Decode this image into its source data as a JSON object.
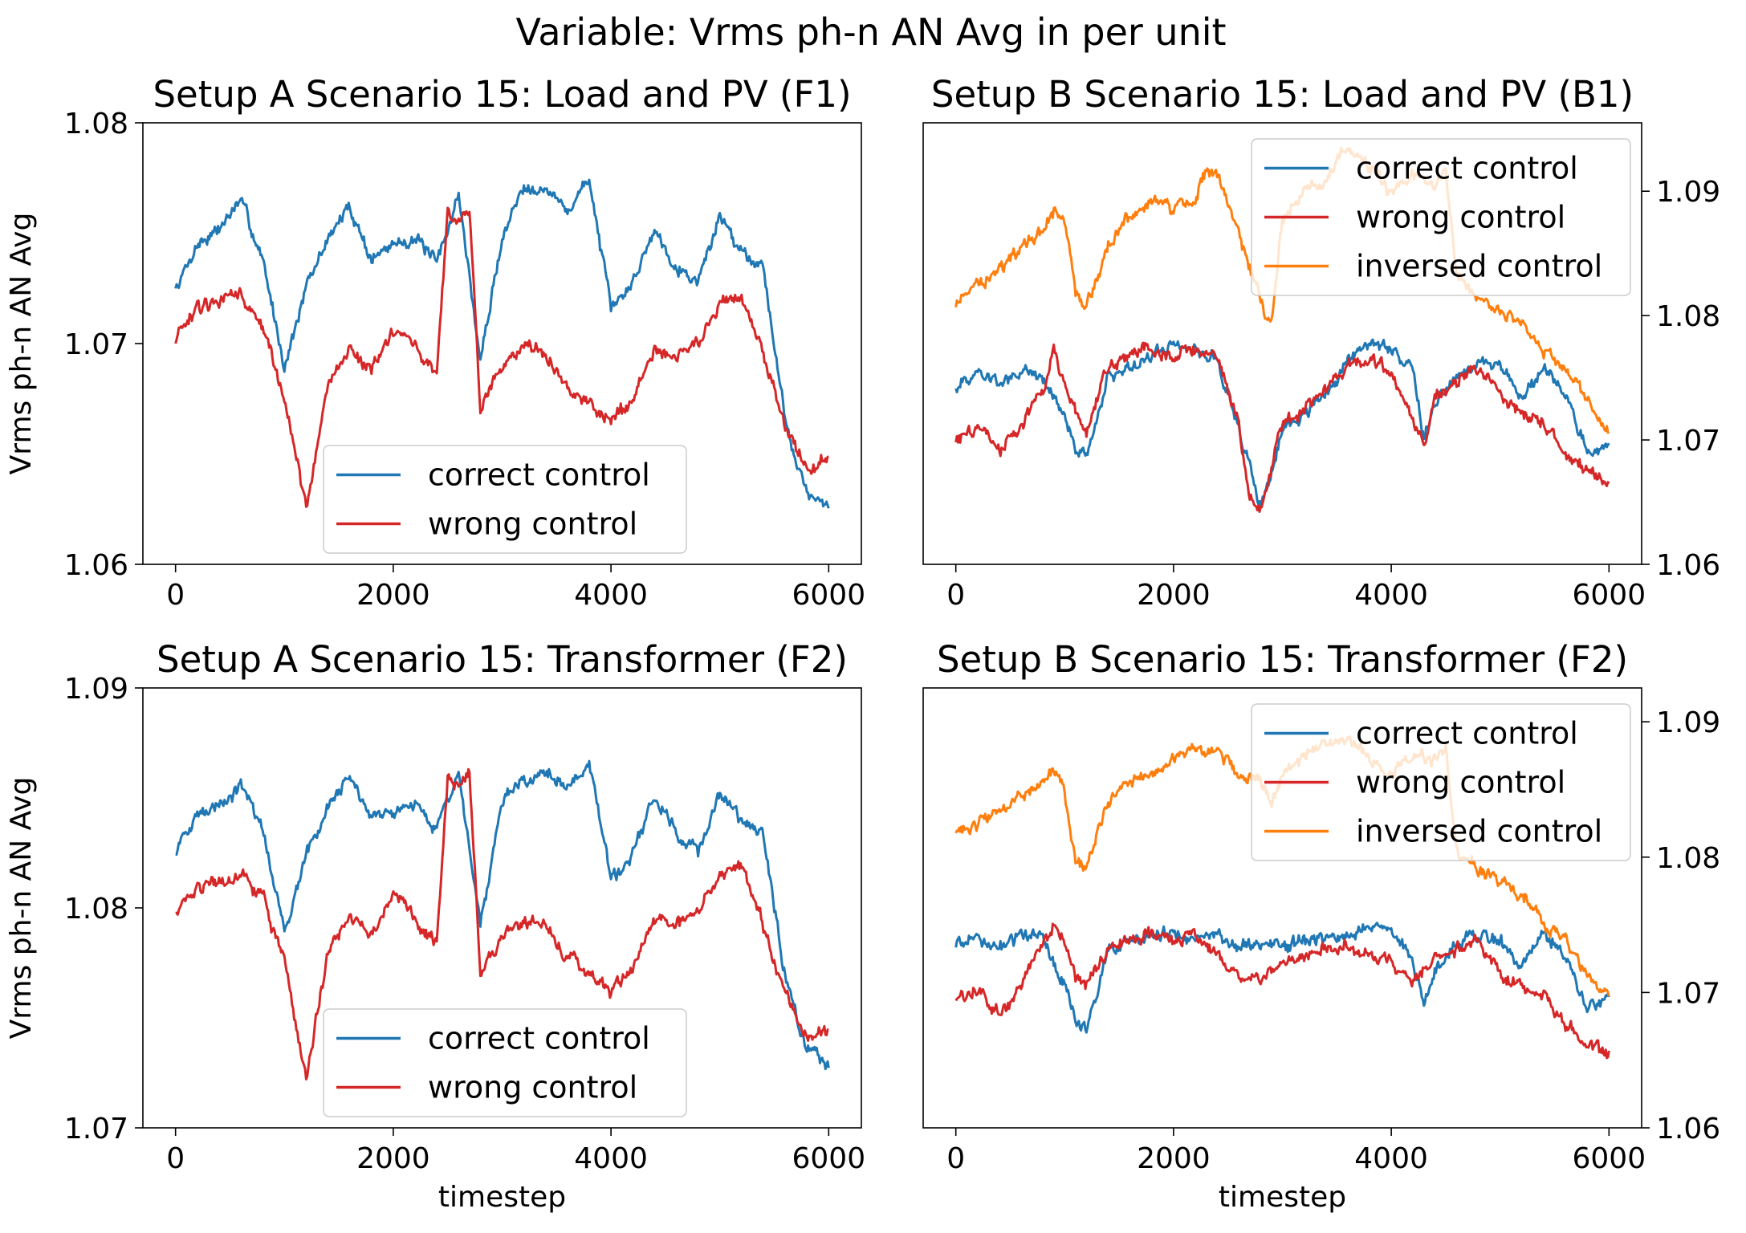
{
  "figure": {
    "suptitle": "Variable: Vrms ph-n AN Avg in per unit"
  },
  "chart_data": [
    {
      "type": "line",
      "title": "Setup A Scenario 15: Load and PV (F1)",
      "xlabel": "",
      "ylabel": "Vrms ph-n AN Avg",
      "y_axis_side": "left",
      "xlim": [
        -300,
        6300
      ],
      "ylim": [
        1.06,
        1.08
      ],
      "xticks": [
        0,
        2000,
        4000,
        6000
      ],
      "xtick_labels": [
        "0",
        "2000",
        "4000",
        "6000"
      ],
      "yticks": [
        1.06,
        1.07,
        1.08
      ],
      "ytick_labels": [
        "1.06",
        "1.07",
        "1.08"
      ],
      "grid": false,
      "legend_position": "lower center",
      "series": [
        {
          "name": "correct control",
          "color": "#1f77b4",
          "x": [
            0,
            200,
            400,
            600,
            800,
            1000,
            1200,
            1400,
            1600,
            1800,
            2000,
            2200,
            2400,
            2600,
            2800,
            3000,
            3200,
            3400,
            3600,
            3800,
            4000,
            4200,
            4400,
            4600,
            4800,
            5000,
            5200,
            5400,
            5600,
            5800,
            6000
          ],
          "y": [
            1.0725,
            1.0745,
            1.0752,
            1.0765,
            1.0738,
            1.069,
            1.0725,
            1.0748,
            1.0762,
            1.0738,
            1.0745,
            1.0748,
            1.0736,
            1.0768,
            1.0692,
            1.0748,
            1.0772,
            1.077,
            1.076,
            1.0775,
            1.0715,
            1.0728,
            1.0752,
            1.0735,
            1.0728,
            1.0758,
            1.0742,
            1.0735,
            1.0665,
            1.0632,
            1.0625
          ]
        },
        {
          "name": "wrong control",
          "color": "#d62728",
          "x": [
            0,
            200,
            400,
            600,
            800,
            1000,
            1200,
            1400,
            1600,
            1800,
            2000,
            2200,
            2400,
            2500,
            2600,
            2700,
            2800,
            3000,
            3200,
            3400,
            3600,
            3800,
            4000,
            4200,
            4400,
            4600,
            4800,
            5000,
            5200,
            5400,
            5600,
            5800,
            6000
          ],
          "y": [
            1.0702,
            1.0715,
            1.072,
            1.0722,
            1.0708,
            1.0675,
            1.0625,
            1.0682,
            1.0698,
            1.0688,
            1.0705,
            1.0698,
            1.0685,
            1.076,
            1.0755,
            1.0762,
            1.067,
            1.069,
            1.07,
            1.0695,
            1.068,
            1.0672,
            1.0665,
            1.0675,
            1.0698,
            1.0695,
            1.07,
            1.0718,
            1.0722,
            1.0695,
            1.0662,
            1.0642,
            1.0648
          ]
        }
      ]
    },
    {
      "type": "line",
      "title": "Setup B Scenario 15: Load and PV (B1)",
      "xlabel": "",
      "ylabel": "",
      "y_axis_side": "right",
      "xlim": [
        -300,
        6300
      ],
      "ylim": [
        1.06,
        1.0955
      ],
      "xticks": [
        0,
        2000,
        4000,
        6000
      ],
      "xtick_labels": [
        "0",
        "2000",
        "4000",
        "6000"
      ],
      "yticks": [
        1.06,
        1.07,
        1.08,
        1.09
      ],
      "ytick_labels": [
        "1.06",
        "1.07",
        "1.08",
        "1.09"
      ],
      "grid": false,
      "legend_position": "upper right",
      "series": [
        {
          "name": "correct control",
          "color": "#1f77b4",
          "x": [
            0,
            200,
            400,
            600,
            800,
            1000,
            1100,
            1200,
            1400,
            1600,
            1800,
            2000,
            2200,
            2400,
            2600,
            2800,
            3000,
            3200,
            3400,
            3600,
            3800,
            4000,
            4200,
            4300,
            4400,
            4600,
            4800,
            5000,
            5200,
            5400,
            5600,
            5800,
            6000
          ],
          "y": [
            1.0742,
            1.0755,
            1.0745,
            1.0755,
            1.075,
            1.072,
            1.0695,
            1.0685,
            1.0752,
            1.0758,
            1.0768,
            1.0778,
            1.0772,
            1.0765,
            1.071,
            1.0645,
            1.0705,
            1.0722,
            1.0735,
            1.0765,
            1.0778,
            1.0775,
            1.0755,
            1.0702,
            1.0728,
            1.0755,
            1.0762,
            1.0758,
            1.0732,
            1.0758,
            1.0735,
            1.0688,
            1.0695
          ]
        },
        {
          "name": "wrong control",
          "color": "#d62728",
          "x": [
            0,
            200,
            400,
            600,
            800,
            900,
            1000,
            1100,
            1200,
            1400,
            1600,
            1800,
            2000,
            2200,
            2400,
            2600,
            2700,
            2800,
            3000,
            3200,
            3400,
            3600,
            3800,
            4000,
            4200,
            4300,
            4400,
            4600,
            4800,
            5000,
            5200,
            5400,
            5600,
            5800,
            6000
          ],
          "y": [
            1.0698,
            1.0712,
            1.0692,
            1.0712,
            1.0738,
            1.0772,
            1.0748,
            1.0722,
            1.0705,
            1.0758,
            1.0768,
            1.0775,
            1.0768,
            1.0772,
            1.0765,
            1.0712,
            1.0655,
            1.0645,
            1.0712,
            1.0725,
            1.0742,
            1.0762,
            1.0768,
            1.0752,
            1.0718,
            1.0695,
            1.0735,
            1.0748,
            1.0758,
            1.0738,
            1.0722,
            1.0712,
            1.0688,
            1.0675,
            1.0665
          ]
        },
        {
          "name": "inversed control",
          "color": "#ff7f0e",
          "x": [
            0,
            200,
            400,
            600,
            800,
            900,
            1000,
            1100,
            1200,
            1400,
            1600,
            1800,
            2000,
            2200,
            2300,
            2400,
            2600,
            2800,
            2900,
            3000,
            3200,
            3400,
            3600,
            3800,
            4000,
            4200,
            4400,
            4500,
            4600,
            4800,
            5000,
            5200,
            5400,
            5600,
            5800,
            6000
          ],
          "y": [
            1.081,
            1.0825,
            1.0835,
            1.0855,
            1.087,
            1.0885,
            1.0875,
            1.082,
            1.0805,
            1.0858,
            1.0878,
            1.0895,
            1.0885,
            1.0895,
            1.0918,
            1.0915,
            1.0868,
            1.0812,
            1.0795,
            1.0878,
            1.0902,
            1.091,
            1.0935,
            1.0918,
            1.0898,
            1.0912,
            1.0905,
            1.0918,
            1.0835,
            1.0812,
            1.0802,
            1.0792,
            1.0772,
            1.0758,
            1.0732,
            1.0708
          ]
        }
      ]
    },
    {
      "type": "line",
      "title": "Setup A Scenario 15: Transformer (F2)",
      "xlabel": "timestep",
      "ylabel": "Vrms ph-n AN Avg",
      "y_axis_side": "left",
      "xlim": [
        -300,
        6300
      ],
      "ylim": [
        1.07,
        1.09
      ],
      "xticks": [
        0,
        2000,
        4000,
        6000
      ],
      "xtick_labels": [
        "0",
        "2000",
        "4000",
        "6000"
      ],
      "yticks": [
        1.07,
        1.08,
        1.09
      ],
      "ytick_labels": [
        "1.07",
        "1.08",
        "1.09"
      ],
      "grid": false,
      "legend_position": "lower center",
      "series": [
        {
          "name": "correct control",
          "color": "#1f77b4",
          "x": [
            0,
            200,
            400,
            600,
            800,
            1000,
            1200,
            1400,
            1600,
            1800,
            2000,
            2200,
            2400,
            2600,
            2800,
            3000,
            3200,
            3400,
            3600,
            3800,
            4000,
            4200,
            4400,
            4600,
            4800,
            5000,
            5200,
            5400,
            5600,
            5800,
            6000
          ],
          "y": [
            1.0825,
            1.0842,
            1.0848,
            1.0855,
            1.0835,
            1.079,
            1.0825,
            1.0845,
            1.086,
            1.0838,
            1.0845,
            1.0848,
            1.0835,
            1.0862,
            1.0792,
            1.0848,
            1.0858,
            1.0862,
            1.0855,
            1.0865,
            1.0812,
            1.0825,
            1.085,
            1.0835,
            1.0825,
            1.0852,
            1.084,
            1.0832,
            1.0768,
            1.0735,
            1.0728
          ]
        },
        {
          "name": "wrong control",
          "color": "#d62728",
          "x": [
            0,
            200,
            400,
            600,
            800,
            1000,
            1200,
            1400,
            1600,
            1800,
            2000,
            2200,
            2400,
            2500,
            2600,
            2700,
            2800,
            3000,
            3200,
            3400,
            3600,
            3800,
            4000,
            4200,
            4400,
            4600,
            4800,
            5000,
            5200,
            5400,
            5600,
            5800,
            6000
          ],
          "y": [
            1.0798,
            1.081,
            1.0812,
            1.0815,
            1.0805,
            1.0775,
            1.0722,
            1.078,
            1.0795,
            1.0788,
            1.0805,
            1.0795,
            1.0782,
            1.0858,
            1.0855,
            1.0862,
            1.0768,
            1.0788,
            1.0795,
            1.0792,
            1.0778,
            1.077,
            1.0762,
            1.0772,
            1.0795,
            1.0792,
            1.0798,
            1.0815,
            1.082,
            1.0792,
            1.0762,
            1.0742,
            1.0742
          ]
        }
      ]
    },
    {
      "type": "line",
      "title": "Setup B Scenario 15: Transformer (F2)",
      "xlabel": "timestep",
      "ylabel": "",
      "y_axis_side": "right",
      "xlim": [
        -300,
        6300
      ],
      "ylim": [
        1.06,
        1.0925
      ],
      "xticks": [
        0,
        2000,
        4000,
        6000
      ],
      "xtick_labels": [
        "0",
        "2000",
        "4000",
        "6000"
      ],
      "yticks": [
        1.06,
        1.07,
        1.08,
        1.09
      ],
      "ytick_labels": [
        "1.06",
        "1.07",
        "1.08",
        "1.09"
      ],
      "grid": false,
      "legend_position": "upper right",
      "series": [
        {
          "name": "correct control",
          "color": "#1f77b4",
          "x": [
            0,
            200,
            400,
            600,
            800,
            1000,
            1100,
            1200,
            1400,
            1600,
            1800,
            2000,
            2200,
            2400,
            2600,
            2800,
            3000,
            3200,
            3400,
            3600,
            3800,
            4000,
            4200,
            4300,
            4400,
            4600,
            4800,
            5000,
            5200,
            5400,
            5600,
            5800,
            6000
          ],
          "y": [
            1.0735,
            1.0742,
            1.0732,
            1.0742,
            1.074,
            1.0705,
            1.0678,
            1.0672,
            1.0732,
            1.0738,
            1.0742,
            1.0745,
            1.0738,
            1.0742,
            1.0735,
            1.0738,
            1.0732,
            1.074,
            1.0738,
            1.0742,
            1.075,
            1.0748,
            1.0722,
            1.0692,
            1.0715,
            1.0738,
            1.0742,
            1.0738,
            1.0718,
            1.0745,
            1.0728,
            1.0688,
            1.0695
          ]
        },
        {
          "name": "wrong control",
          "color": "#d62728",
          "x": [
            0,
            200,
            400,
            600,
            800,
            900,
            1000,
            1100,
            1200,
            1400,
            1600,
            1800,
            2000,
            2200,
            2400,
            2600,
            2800,
            3000,
            3200,
            3400,
            3600,
            3800,
            4000,
            4200,
            4400,
            4600,
            4800,
            5000,
            5200,
            5400,
            5600,
            5800,
            6000
          ],
          "y": [
            1.0695,
            1.0702,
            1.0682,
            1.0705,
            1.0738,
            1.0752,
            1.0738,
            1.0712,
            1.0705,
            1.073,
            1.0738,
            1.0742,
            1.0738,
            1.0742,
            1.0728,
            1.0712,
            1.0708,
            1.0722,
            1.0728,
            1.0732,
            1.0735,
            1.0728,
            1.0722,
            1.0708,
            1.0728,
            1.0732,
            1.0738,
            1.0712,
            1.0705,
            1.0698,
            1.0678,
            1.0662,
            1.0655
          ]
        },
        {
          "name": "inversed control",
          "color": "#ff7f0e",
          "x": [
            0,
            200,
            400,
            600,
            800,
            900,
            1000,
            1100,
            1200,
            1400,
            1600,
            1800,
            2000,
            2200,
            2300,
            2400,
            2600,
            2800,
            2900,
            3000,
            3200,
            3400,
            3600,
            3800,
            4000,
            4200,
            4400,
            4500,
            4600,
            4800,
            5000,
            5200,
            5400,
            5600,
            5800,
            6000
          ],
          "y": [
            1.0818,
            1.0825,
            1.0835,
            1.0845,
            1.0858,
            1.0865,
            1.0848,
            1.0795,
            1.0792,
            1.0842,
            1.0855,
            1.0862,
            1.0872,
            1.0882,
            1.0875,
            1.0878,
            1.0862,
            1.0855,
            1.084,
            1.0862,
            1.0875,
            1.0882,
            1.0888,
            1.0872,
            1.0862,
            1.0875,
            1.0872,
            1.0878,
            1.0805,
            1.0792,
            1.0782,
            1.0772,
            1.0752,
            1.0738,
            1.0712,
            1.0698
          ]
        }
      ]
    }
  ]
}
